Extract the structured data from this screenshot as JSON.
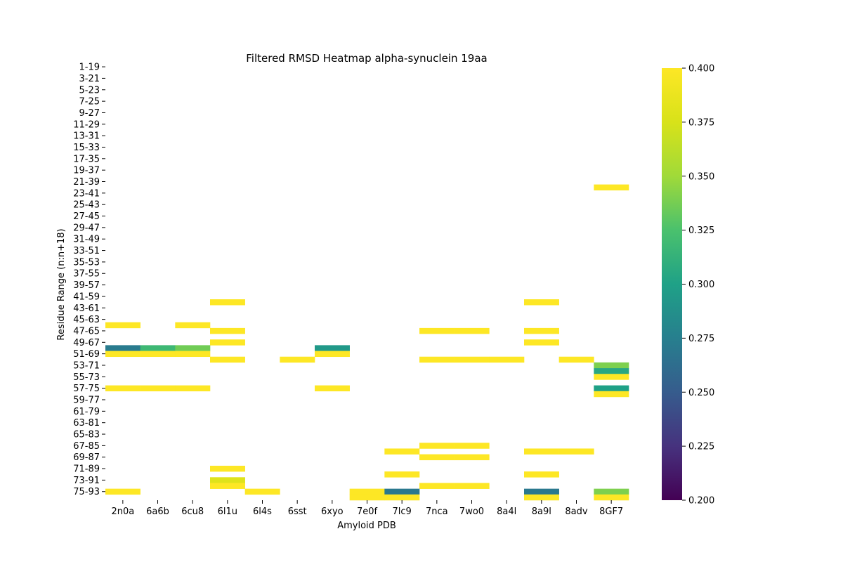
{
  "chart_data": {
    "type": "heatmap",
    "title": "Filtered RMSD Heatmap alpha-synuclein 19aa",
    "xlabel": "Amyloid PDB",
    "ylabel": "Residue Range (n:n+18)",
    "x_categories": [
      "2n0a",
      "6a6b",
      "6cu8",
      "6l1u",
      "6l4s",
      "6sst",
      "6xyo",
      "7e0f",
      "7lc9",
      "7nca",
      "7wo0",
      "8a4l",
      "8a9l",
      "8adv",
      "8GF7"
    ],
    "row_start": 1,
    "row_end": 76,
    "row_window": 19,
    "y_tick_labels": [
      "1-19",
      "3-21",
      "5-23",
      "7-25",
      "9-27",
      "11-29",
      "13-31",
      "15-33",
      "17-35",
      "19-37",
      "21-39",
      "23-41",
      "25-43",
      "27-45",
      "29-47",
      "31-49",
      "33-51",
      "35-53",
      "37-55",
      "39-57",
      "41-59",
      "43-61",
      "45-63",
      "47-65",
      "49-67",
      "51-69",
      "53-71",
      "55-73",
      "57-75",
      "59-77",
      "61-79",
      "63-81",
      "65-83",
      "67-85",
      "69-87",
      "71-89",
      "73-91",
      "75-93"
    ],
    "colorbar": {
      "colormap": "viridis",
      "vmin": 0.2,
      "vmax": 0.4,
      "ticks": [
        "0.200",
        "0.225",
        "0.250",
        "0.275",
        "0.300",
        "0.325",
        "0.350",
        "0.375",
        "0.400"
      ]
    },
    "cells": [
      {
        "x": "8GF7",
        "row": "22-40",
        "value": 0.4
      },
      {
        "x": "6l1u",
        "row": "42-60",
        "value": 0.4
      },
      {
        "x": "8a9l",
        "row": "42-60",
        "value": 0.4
      },
      {
        "x": "2n0a",
        "row": "46-64",
        "value": 0.4
      },
      {
        "x": "6cu8",
        "row": "46-64",
        "value": 0.4
      },
      {
        "x": "6l1u",
        "row": "47-65",
        "value": 0.4
      },
      {
        "x": "7nca",
        "row": "47-65",
        "value": 0.4
      },
      {
        "x": "7wo0",
        "row": "47-65",
        "value": 0.4
      },
      {
        "x": "8a9l",
        "row": "47-65",
        "value": 0.4
      },
      {
        "x": "6l1u",
        "row": "49-67",
        "value": 0.4
      },
      {
        "x": "8a9l",
        "row": "49-67",
        "value": 0.4
      },
      {
        "x": "2n0a",
        "row": "50-68",
        "value": 0.272
      },
      {
        "x": "6a6b",
        "row": "50-68",
        "value": 0.318
      },
      {
        "x": "6cu8",
        "row": "50-68",
        "value": 0.336
      },
      {
        "x": "6xyo",
        "row": "50-68",
        "value": 0.294
      },
      {
        "x": "2n0a",
        "row": "51-69",
        "value": 0.4
      },
      {
        "x": "6a6b",
        "row": "51-69",
        "value": 0.4
      },
      {
        "x": "6cu8",
        "row": "51-69",
        "value": 0.4
      },
      {
        "x": "6xyo",
        "row": "51-69",
        "value": 0.4
      },
      {
        "x": "6l1u",
        "row": "52-70",
        "value": 0.4
      },
      {
        "x": "6sst",
        "row": "52-70",
        "value": 0.4
      },
      {
        "x": "7nca",
        "row": "52-70",
        "value": 0.4
      },
      {
        "x": "7wo0",
        "row": "52-70",
        "value": 0.4
      },
      {
        "x": "8a4l",
        "row": "52-70",
        "value": 0.4
      },
      {
        "x": "8adv",
        "row": "52-70",
        "value": 0.4
      },
      {
        "x": "8GF7",
        "row": "53-71",
        "value": 0.34
      },
      {
        "x": "8GF7",
        "row": "54-72",
        "value": 0.305
      },
      {
        "x": "8GF7",
        "row": "55-73",
        "value": 0.4
      },
      {
        "x": "2n0a",
        "row": "57-75",
        "value": 0.4
      },
      {
        "x": "6a6b",
        "row": "57-75",
        "value": 0.4
      },
      {
        "x": "6cu8",
        "row": "57-75",
        "value": 0.4
      },
      {
        "x": "6xyo",
        "row": "57-75",
        "value": 0.4
      },
      {
        "x": "8GF7",
        "row": "57-75",
        "value": 0.3
      },
      {
        "x": "8GF7",
        "row": "58-76",
        "value": 0.4
      },
      {
        "x": "7nca",
        "row": "67-85",
        "value": 0.4
      },
      {
        "x": "7wo0",
        "row": "67-85",
        "value": 0.4
      },
      {
        "x": "7lc9",
        "row": "68-86",
        "value": 0.4
      },
      {
        "x": "8a9l",
        "row": "68-86",
        "value": 0.4
      },
      {
        "x": "8adv",
        "row": "68-86",
        "value": 0.4
      },
      {
        "x": "7nca",
        "row": "69-87",
        "value": 0.4
      },
      {
        "x": "7wo0",
        "row": "69-87",
        "value": 0.4
      },
      {
        "x": "6l1u",
        "row": "71-89",
        "value": 0.4
      },
      {
        "x": "7lc9",
        "row": "72-90",
        "value": 0.4
      },
      {
        "x": "8a9l",
        "row": "72-90",
        "value": 0.4
      },
      {
        "x": "6l1u",
        "row": "73-91",
        "value": 0.38
      },
      {
        "x": "6l1u",
        "row": "74-92",
        "value": 0.4
      },
      {
        "x": "7nca",
        "row": "74-92",
        "value": 0.4
      },
      {
        "x": "7wo0",
        "row": "74-92",
        "value": 0.4
      },
      {
        "x": "2n0a",
        "row": "75-93",
        "value": 0.4
      },
      {
        "x": "6l4s",
        "row": "75-93",
        "value": 0.4
      },
      {
        "x": "7e0f",
        "row": "75-93",
        "value": 0.4
      },
      {
        "x": "7lc9",
        "row": "75-93",
        "value": 0.27
      },
      {
        "x": "8a9l",
        "row": "75-93",
        "value": 0.27
      },
      {
        "x": "8GF7",
        "row": "75-93",
        "value": 0.34
      },
      {
        "x": "7e0f",
        "row": "76-94",
        "value": 0.4
      },
      {
        "x": "7lc9",
        "row": "76-94",
        "value": 0.4
      },
      {
        "x": "8a9l",
        "row": "76-94",
        "value": 0.4
      },
      {
        "x": "8GF7",
        "row": "76-94",
        "value": 0.4
      }
    ]
  }
}
